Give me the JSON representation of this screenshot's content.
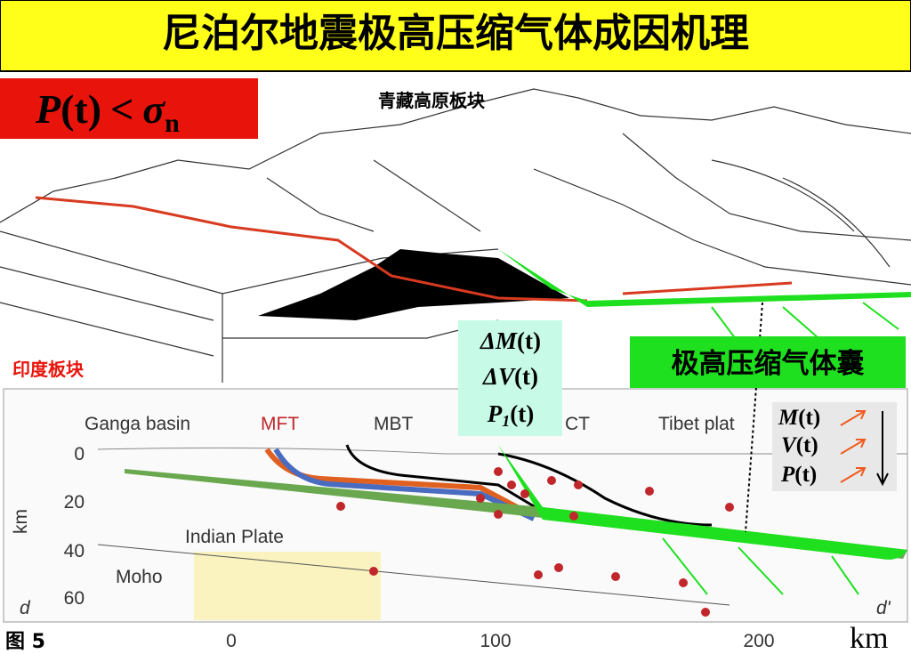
{
  "header": {
    "title": "尼泊尔地震极高压缩气体成因机理"
  },
  "formula": {
    "lhs": "P",
    "arg": "(t)",
    "op": "<",
    "rhs": "σ",
    "sub": "n"
  },
  "upper": {
    "plate_top": "青藏高原板块",
    "plate_bottom": "印度板块"
  },
  "changes": [
    {
      "symbol": "ΔM",
      "arg": "(t)"
    },
    {
      "symbol": "ΔV",
      "arg": "(t)"
    },
    {
      "symbol": "P",
      "sub": "1",
      "arg": "(t)"
    }
  ],
  "gas_pocket": "极高压缩气体囊",
  "section": {
    "labels": {
      "basin": "Ganga basin",
      "mft": "MFT",
      "mbt": "MBT",
      "mct": "CT",
      "tibet": "Tibet plat",
      "indian": "Indian Plate",
      "moho": "Moho",
      "d": "d",
      "d2": "d'"
    },
    "y_axis_label": "km",
    "yticks": [
      "0",
      "20",
      "40",
      "60"
    ],
    "xticks": [
      "0",
      "100",
      "200"
    ],
    "x_axis_label": "km"
  },
  "state": [
    {
      "symbol": "M",
      "arg": "(t)"
    },
    {
      "symbol": "V",
      "arg": "(t)"
    },
    {
      "symbol": "P",
      "arg": "(t)"
    }
  ],
  "figure_label": "图 5"
}
